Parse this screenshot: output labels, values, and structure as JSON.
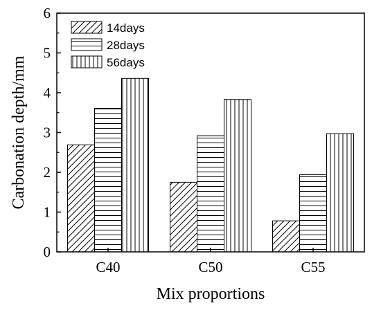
{
  "chart_data": {
    "type": "bar",
    "title": "",
    "xlabel": "Mix proportions",
    "ylabel": "Carbonation depth/mm",
    "categories": [
      "C40",
      "C50",
      "C55"
    ],
    "ylim": [
      0,
      6
    ],
    "yticks": [
      "0",
      "1",
      "2",
      "3",
      "4",
      "5",
      "6"
    ],
    "grid": false,
    "legend_position": "top-left",
    "series": [
      {
        "name": "14days",
        "values": [
          2.69,
          1.75,
          0.78
        ],
        "pattern": "diagonal-hatch"
      },
      {
        "name": "28days",
        "values": [
          3.61,
          2.92,
          1.94
        ],
        "pattern": "horizontal-lines"
      },
      {
        "name": "56days",
        "values": [
          4.36,
          3.83,
          2.97
        ],
        "pattern": "vertical-lines"
      }
    ],
    "colors": {
      "stroke": "#000000",
      "fill": "#ffffff"
    }
  }
}
